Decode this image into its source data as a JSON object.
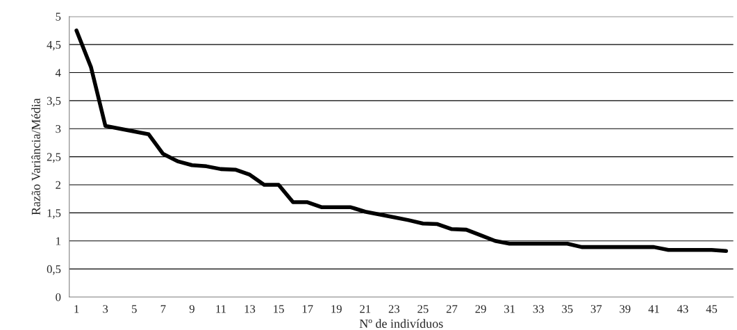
{
  "chart_data": {
    "type": "line",
    "xlabel": "Nº de indivíduos",
    "ylabel": "Razão Variância/Média",
    "categories": [
      "1",
      null,
      "3",
      null,
      "5",
      null,
      "7",
      null,
      "9",
      null,
      "11",
      null,
      "13",
      null,
      "15",
      null,
      "17",
      null,
      "19",
      null,
      "21",
      null,
      "23",
      null,
      "25",
      null,
      "27",
      null,
      "29",
      null,
      "31",
      null,
      "33",
      null,
      "35",
      null,
      "37",
      null,
      "39",
      null,
      "41",
      null,
      "43",
      null,
      "45",
      null
    ],
    "series": [
      {
        "color": "#000000",
        "values": [
          4.75,
          4.1,
          3.05,
          3.0,
          2.95,
          2.9,
          2.55,
          2.42,
          2.35,
          2.33,
          2.28,
          2.27,
          2.18,
          2.0,
          2.0,
          1.69,
          1.69,
          1.6,
          1.6,
          1.6,
          1.52,
          1.47,
          1.42,
          1.37,
          1.31,
          1.3,
          1.21,
          1.2,
          1.1,
          1.0,
          0.95,
          0.95,
          0.95,
          0.95,
          0.95,
          0.89,
          0.89,
          0.89,
          0.89,
          0.89,
          0.89,
          0.84,
          0.84,
          0.84,
          0.84,
          0.82
        ]
      }
    ],
    "ylim": [
      0,
      5
    ],
    "yticks": [
      0,
      {
        "value": 0.5,
        "label": "0,5"
      },
      1,
      {
        "value": 1.5,
        "label": "1,5"
      },
      2,
      {
        "value": 2.5,
        "label": "2,5"
      },
      3,
      {
        "value": 3.5,
        "label": "3,5"
      },
      4,
      {
        "value": 4.5,
        "label": "4,5"
      },
      5
    ],
    "grid": "y",
    "marker": "none",
    "line_style": "solid"
  }
}
